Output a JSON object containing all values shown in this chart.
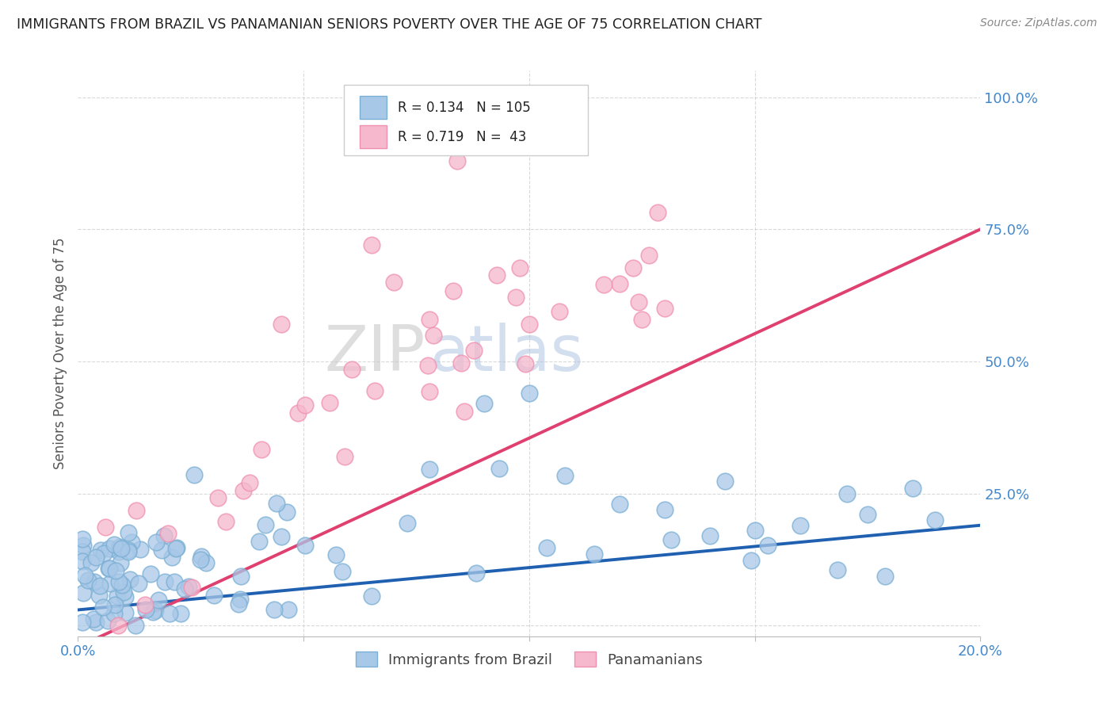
{
  "title": "IMMIGRANTS FROM BRAZIL VS PANAMANIAN SENIORS POVERTY OVER THE AGE OF 75 CORRELATION CHART",
  "source": "Source: ZipAtlas.com",
  "ylabel": "Seniors Poverty Over the Age of 75",
  "xlim": [
    0.0,
    0.2
  ],
  "ylim": [
    -0.02,
    1.05
  ],
  "xticks": [
    0.0,
    0.05,
    0.1,
    0.15,
    0.2
  ],
  "xticklabels": [
    "0.0%",
    "",
    "",
    "",
    "20.0%"
  ],
  "yticks": [
    0.0,
    0.25,
    0.5,
    0.75,
    1.0
  ],
  "yticklabels": [
    "",
    "25.0%",
    "50.0%",
    "75.0%",
    "100.0%"
  ],
  "blue_color": "#a8c8e8",
  "pink_color": "#f5b8cc",
  "blue_edge_color": "#7aafd4",
  "pink_edge_color": "#f090b0",
  "blue_line_color": "#2060b0",
  "pink_line_color": "#e04070",
  "blue_R": 0.134,
  "blue_N": 105,
  "pink_R": 0.719,
  "pink_N": 43,
  "legend_label_blue": "Immigrants from Brazil",
  "legend_label_pink": "Panamanians",
  "watermark_zip": "ZIP",
  "watermark_atlas": "atlas",
  "background_color": "#ffffff",
  "grid_color": "#d0d0d0",
  "title_color": "#222222",
  "tick_color": "#4488cc",
  "source_color": "#888888"
}
